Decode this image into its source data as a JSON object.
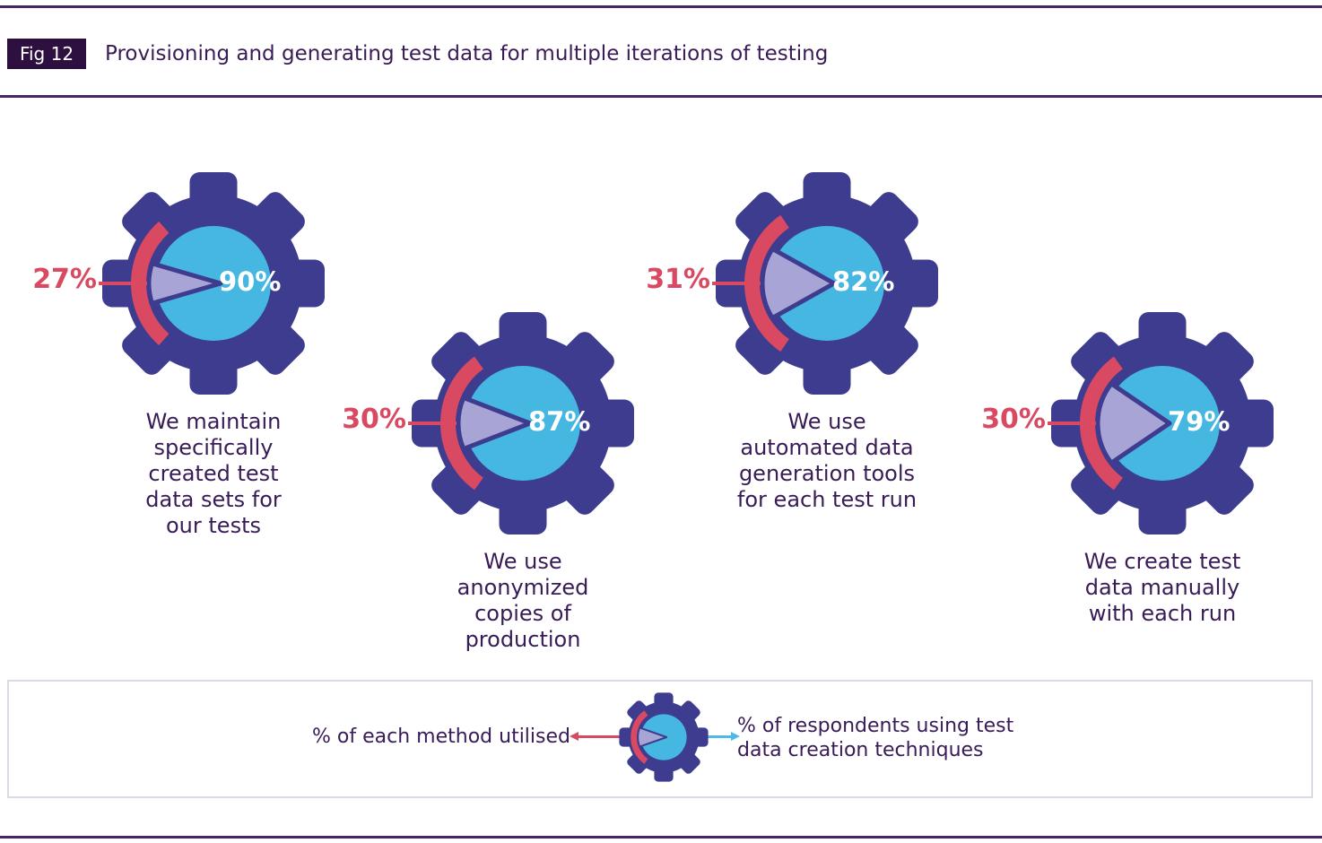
{
  "header": {
    "badge": "Fig 12",
    "title": "Provisioning and generating test data for multiple iterations of testing"
  },
  "chart_data": {
    "type": "pie",
    "variant": "gear-pie-infographic",
    "title": "Provisioning and generating test data for multiple iterations of testing",
    "inner_value_meaning": "% of respondents using test data creation techniques",
    "arc_value_meaning": "% of each method utilised",
    "items": [
      {
        "label": "We maintain\nspecifically\ncreated test\ndata sets for\nour tests",
        "method_utilised_pct": 27,
        "respondents_pct": 90
      },
      {
        "label": "We use\nanonymized\ncopies of\nproduction",
        "method_utilised_pct": 30,
        "respondents_pct": 87
      },
      {
        "label": "We use\nautomated data\ngeneration tools\nfor each test run",
        "method_utilised_pct": 31,
        "respondents_pct": 82
      },
      {
        "label": "We create test\ndata manually\nwith each run",
        "method_utilised_pct": 30,
        "respondents_pct": 79
      }
    ]
  },
  "legend": {
    "left_label": "% of each method utilised",
    "right_label": "% of respondents using test\ndata creation techniques",
    "icon": "gear-pie-icon"
  },
  "colors": {
    "indigo": "#3E3C8F",
    "blue": "#45B7E0",
    "lavender": "#A8A4D5",
    "red": "#D94A62",
    "deep_purple": "#381B57",
    "rule_purple": "#472566",
    "badge_bg": "#2D1040",
    "legend_border": "#DDDAE6",
    "arrow_blue": "#4FB9E8"
  }
}
